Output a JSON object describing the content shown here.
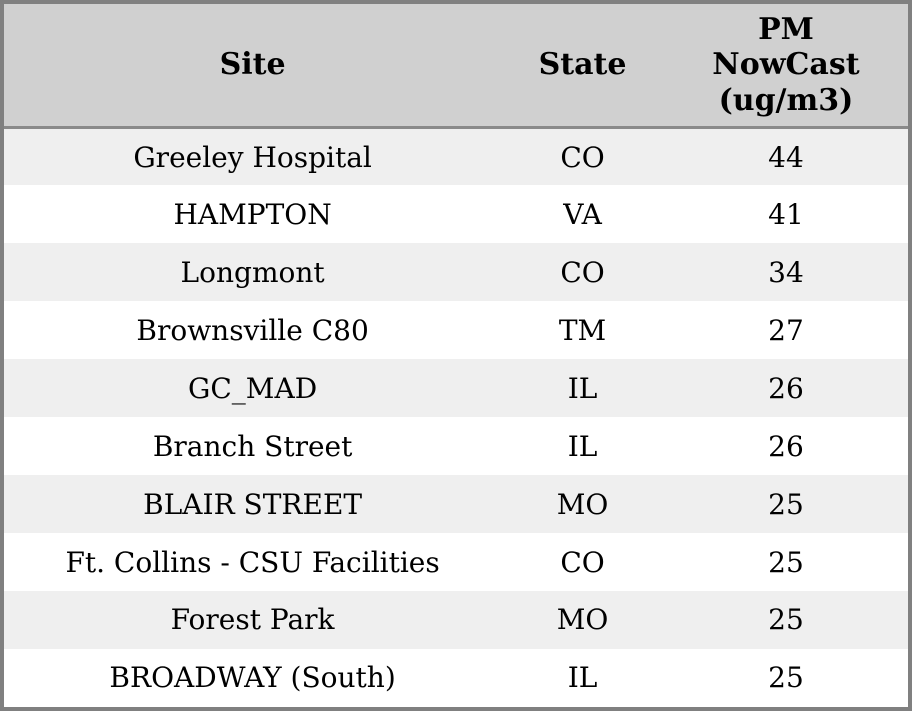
{
  "header": {
    "site_label": "Site",
    "state_label": "State",
    "pm_label": "PM\nNowCast\n(ug/m3)"
  },
  "colors": {
    "frame_border": "#808080",
    "header_bg": "#d0d0d0",
    "header_divider": "#8a8a8a",
    "row_alt_bg": "#efefef",
    "row_bg": "#ffffff",
    "text": "#000000"
  },
  "chart_data": {
    "type": "table",
    "title": "",
    "columns": [
      "Site",
      "State",
      "PM NowCast (ug/m3)"
    ],
    "rows": [
      [
        "Greeley Hospital",
        "CO",
        44
      ],
      [
        "HAMPTON",
        "VA",
        41
      ],
      [
        "Longmont",
        "CO",
        34
      ],
      [
        "Brownsville C80",
        "TM",
        27
      ],
      [
        "GC_MAD",
        "IL",
        26
      ],
      [
        "Branch Street",
        "IL",
        26
      ],
      [
        "BLAIR STREET",
        "MO",
        25
      ],
      [
        "Ft. Collins - CSU Facilities",
        "CO",
        25
      ],
      [
        "Forest Park",
        "MO",
        25
      ],
      [
        "BROADWAY (South)",
        "IL",
        25
      ]
    ]
  }
}
